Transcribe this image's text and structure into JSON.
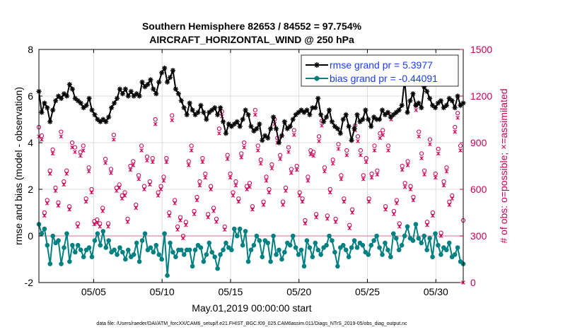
{
  "chart_data": {
    "type": "line",
    "title": "Southern Hemisphere 82653 / 84552 = 97.754%",
    "subtitle": "AIRCRAFT_HORIZONTAL_WIND @ 250 hPa",
    "xlabel": "May.01,2019 00:00:00 start",
    "ylabel": "rmse and bias (model - observation)",
    "ylabel_right": "# of obs: o=possible; ×=assimilated",
    "xlim": [
      1,
      32
    ],
    "ylim": [
      -2,
      8
    ],
    "ylim_right": [
      0,
      1500
    ],
    "x_tick_values": [
      5,
      10,
      15,
      20,
      25,
      30
    ],
    "x_tick_labels": [
      "05/05",
      "05/10",
      "05/15",
      "05/20",
      "05/25",
      "05/30"
    ],
    "y_tick_labels": [
      "-2",
      "0",
      "2",
      "4",
      "6",
      "8"
    ],
    "y_right_tick_labels": [
      "0",
      "300",
      "600",
      "900",
      "1200",
      "1500"
    ],
    "grid": true,
    "legend_position": "top-right",
    "series": [
      {
        "name": "rmse grand pr = 5.3977",
        "color": "#000000",
        "marker": "star",
        "values": [
          6.2,
          5.3,
          5.7,
          5.5,
          4.9,
          5.4,
          5.8,
          6.0,
          5.9,
          6.1,
          6.0,
          6.5,
          6.3,
          5.9,
          5.8,
          5.7,
          5.5,
          5.6,
          5.9,
          5.4,
          5.2,
          5.0,
          4.9,
          5.0,
          4.9,
          5.1,
          5.5,
          5.7,
          5.9,
          6.3,
          6.1,
          6.3,
          6.0,
          6.2,
          6.0,
          6.1,
          6.0,
          6.6,
          6.4,
          6.5,
          6.7,
          6.3,
          6.1,
          6.6,
          7.0,
          7.2,
          6.6,
          6.8,
          7.1,
          6.3,
          6.1,
          5.8,
          5.5,
          5.2,
          5.7,
          5.4,
          5.2,
          5.3,
          5.6,
          5.3,
          5.0,
          5.3,
          5.4,
          5.5,
          5.2,
          5.5,
          4.9,
          4.4,
          4.8,
          4.7,
          4.8,
          4.9,
          4.7,
          5.0,
          5.4,
          5.2,
          4.7,
          4.5,
          4.6,
          4.8,
          4.1,
          4.3,
          4.2,
          4.6,
          5.1,
          4.6,
          4.0,
          4.3,
          4.9,
          4.6,
          4.7,
          5.0,
          5.2,
          5.3,
          5.4,
          5.3,
          5.4,
          5.2,
          5.5,
          5.5,
          5.9,
          5.2,
          4.9,
          5.1,
          5.4,
          4.9,
          4.7,
          4.6,
          4.4,
          5.0,
          5.2,
          4.7,
          4.1,
          4.6,
          5.2,
          4.9,
          5.0,
          5.4,
          5.0,
          4.7,
          5.1,
          5.0,
          5.0,
          5.4,
          5.2,
          5.3,
          5.1,
          5.2,
          5.3,
          5.4,
          5.6,
          6.7,
          5.3,
          5.8,
          6.1,
          5.6,
          5.7,
          5.5,
          6.4,
          6.2,
          5.9,
          5.6,
          5.5,
          5.7,
          5.8,
          5.5,
          5.6,
          5.9,
          5.8,
          5.5,
          6.0,
          5.6,
          5.7
        ]
      },
      {
        "name": "bias grand pr = -0.44091",
        "color": "#008080",
        "marker": "circle",
        "values": [
          0.5,
          0.1,
          0.3,
          -0.4,
          -1.2,
          0.0,
          -0.3,
          -0.2,
          -1.2,
          -0.5,
          0.1,
          -1.1,
          -0.4,
          -0.7,
          -0.4,
          -0.6,
          -0.9,
          -0.6,
          -0.5,
          -0.9,
          -0.2,
          0.1,
          -0.4,
          0.2,
          -0.5,
          -0.2,
          -0.7,
          -0.6,
          -0.8,
          -0.5,
          -0.7,
          -1.0,
          -0.6,
          -0.9,
          -0.8,
          -0.3,
          -1.1,
          -0.2,
          0.1,
          -0.6,
          -0.5,
          -0.7,
          -0.4,
          -0.8,
          -1.0,
          0.1,
          -1.7,
          -0.3,
          -0.7,
          -0.9,
          -0.6,
          -0.6,
          -0.8,
          -0.6,
          -0.6,
          -1.3,
          -0.6,
          -0.4,
          -0.5,
          -1.1,
          -0.8,
          -0.3,
          -0.7,
          -0.9,
          -1.4,
          -0.8,
          -0.6,
          -0.3,
          -0.5,
          -0.6,
          0.3,
          0.0,
          0.3,
          -0.4,
          0.2,
          -1.1,
          -0.6,
          -0.4,
          0.0,
          -0.2,
          -0.9,
          -0.2,
          -0.3,
          -1.1,
          0.0,
          -0.8,
          -0.6,
          -1.0,
          -0.7,
          -0.3,
          -0.4,
          0.0,
          -0.5,
          -0.8,
          -0.6,
          -1.3,
          -0.2,
          -0.5,
          -0.9,
          -0.3,
          -0.6,
          -0.8,
          -0.5,
          -0.4,
          0.0,
          -0.2,
          -0.7,
          -1.3,
          -0.5,
          -0.4,
          -0.6,
          -0.9,
          -0.5,
          -0.2,
          -0.5,
          -0.3,
          -0.4,
          -0.7,
          -0.8,
          -0.4,
          -0.2,
          0.0,
          -0.5,
          -0.8,
          -0.3,
          -0.6,
          -0.9,
          0.1,
          -0.1,
          -0.6,
          -0.4,
          0.0,
          0.4,
          -0.1,
          -0.2,
          0.5,
          -0.1,
          -0.3,
          0.0,
          -0.6,
          -0.1,
          -0.9,
          0.1,
          -0.4,
          -0.8,
          -0.5,
          -0.6,
          -0.3,
          -0.9,
          -0.8,
          -0.5,
          -1.1,
          -1.2
        ]
      },
      {
        "name": "obs possible",
        "color": "#cc0055",
        "marker": "o",
        "values": [
          1000,
          945,
          450,
          530,
          720,
          855,
          610,
          515,
          970,
          650,
          720,
          490,
          900,
          870,
          380,
          840,
          880,
          540,
          740,
          600,
          395,
          405,
          380,
          480,
          795,
          380,
          730,
          950,
          610,
          630,
          560,
          580,
          410,
          750,
          780,
          500,
          690,
          880,
          620,
          810,
          650,
          800,
          1050,
          580,
          620,
          680,
          800,
          450,
          1075,
          530,
          360,
          420,
          300,
          390,
          780,
          880,
          460,
          550,
          650,
          800,
          700,
          440,
          620,
          480,
          410,
          990,
          1100,
          360,
          820,
          700,
          580,
          650,
          540,
          830,
          900,
          620,
          640,
          490,
          1110,
          880,
          790,
          520,
          680,
          600,
          760,
          1050,
          930,
          820,
          520,
          610,
          870,
          730,
          980,
          750,
          580,
          540,
          400,
          680,
          850,
          840,
          440,
          940,
          1040,
          740,
          430,
          600,
          790,
          410,
          890,
          690,
          540,
          850,
          370,
          470,
          1010,
          940,
          850,
          690,
          800,
          540,
          700,
          880,
          720,
          960,
          980,
          490,
          880,
          1080,
          460,
          530,
          380,
          750,
          640,
          780,
          620,
          550,
          1140,
          970,
          830,
          720,
          390,
          920,
          450,
          700,
          860,
          320,
          650,
          740,
          520,
          560,
          1000,
          1090,
          880,
          400
        ]
      },
      {
        "name": "obs assimilated",
        "color": "#cc0055",
        "marker": "x",
        "values": [
          940,
          920,
          430,
          510,
          700,
          830,
          590,
          495,
          940,
          630,
          700,
          470,
          870,
          840,
          360,
          815,
          850,
          520,
          715,
          580,
          375,
          385,
          360,
          460,
          770,
          360,
          705,
          920,
          590,
          610,
          540,
          560,
          390,
          725,
          755,
          480,
          665,
          850,
          600,
          785,
          630,
          775,
          1020,
          560,
          600,
          655,
          775,
          430,
          1045,
          510,
          340,
          400,
          285,
          370,
          755,
          850,
          440,
          530,
          625,
          775,
          675,
          420,
          600,
          460,
          390,
          960,
          1070,
          340,
          795,
          675,
          560,
          625,
          520,
          805,
          870,
          600,
          615,
          470,
          1080,
          850,
          765,
          500,
          655,
          580,
          735,
          1020,
          900,
          795,
          500,
          590,
          840,
          705,
          950,
          725,
          560,
          520,
          380,
          655,
          825,
          815,
          420,
          910,
          1010,
          715,
          410,
          580,
          765,
          390,
          860,
          665,
          520,
          820,
          350,
          450,
          980,
          910,
          820,
          665,
          775,
          520,
          675,
          850,
          695,
          930,
          950,
          470,
          850,
          1050,
          440,
          510,
          360,
          725,
          615,
          755,
          600,
          530,
          1110,
          940,
          800,
          695,
          370,
          890,
          430,
          675,
          830,
          300,
          625,
          715,
          500,
          540,
          970,
          1060,
          850,
          0
        ]
      }
    ]
  },
  "footnote": "data file: /Users/raeder/DAI/ATM_forcXX/CAM6_setup/f.e21.FHIST_BGC.f09_025.CAM6assim.011/Diags_NTrS_2019-05/obs_diag_output.nc",
  "colors": {
    "rmse": "#000000",
    "bias": "#008080",
    "obs": "#cc0055",
    "legend_text": "#1a3cff",
    "zero_line": "#d98aa6"
  }
}
